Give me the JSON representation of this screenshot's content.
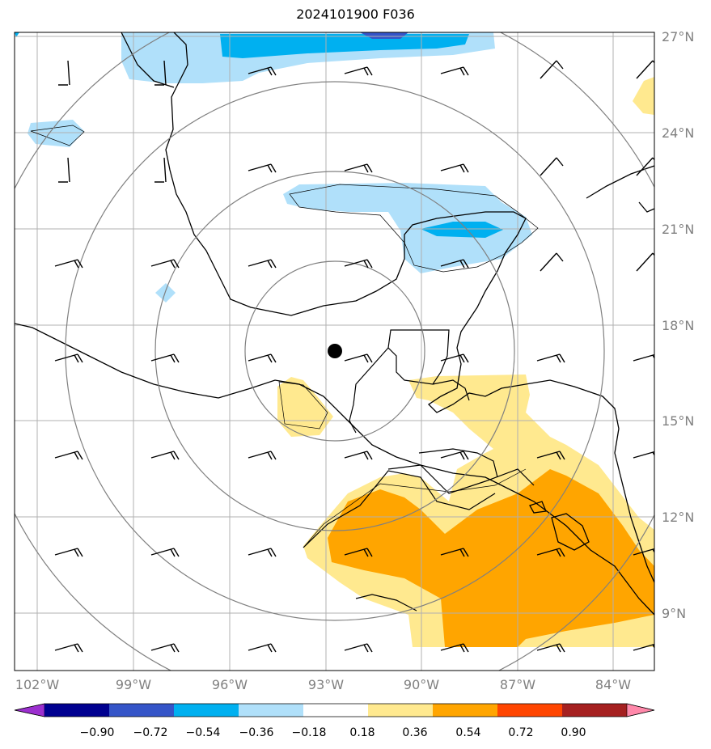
{
  "title": "2024101900 F036",
  "x_ticks": [
    "102°W",
    "99°W",
    "96°W",
    "93°W",
    "90°W",
    "87°W",
    "84°W"
  ],
  "y_ticks": [
    "27°N",
    "24°N",
    "21°N",
    "18°N",
    "15°N",
    "12°N",
    "9°N"
  ],
  "colorbar": {
    "tick_labels": [
      "−0.90",
      "−0.72",
      "−0.54",
      "−0.36",
      "−0.18",
      "0.18",
      "0.36",
      "0.54",
      "0.72",
      "0.90"
    ],
    "colors": [
      "#9c2fcf",
      "#000090",
      "#3555c8",
      "#00b0f0",
      "#b0e0fa",
      "#ffffff",
      "#ffe98f",
      "#ffa500",
      "#ff4500",
      "#a52020",
      "#ff88aa"
    ]
  },
  "map": {
    "lon_range": [
      -102.7,
      -82.7
    ],
    "lat_range": [
      7.2,
      27.2
    ],
    "center_marker": {
      "lon": -92.8,
      "lat": 17.2
    },
    "range_rings_deg": [
      2.8,
      5.6,
      8.4,
      11.2
    ]
  }
}
